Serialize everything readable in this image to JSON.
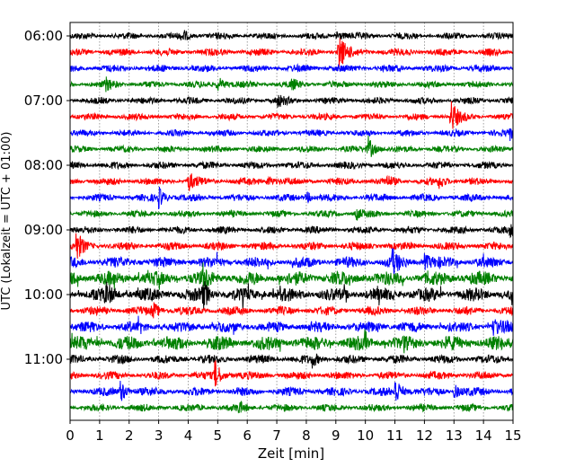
{
  "chart_data": {
    "type": "line",
    "subtype": "helicorder",
    "xlabel": "Zeit  [min]",
    "ylabel": "UTC (Lokalzeit = UTC + 01:00)",
    "xlim": [
      0,
      15
    ],
    "x_ticks": [
      "0",
      "1",
      "2",
      "3",
      "4",
      "5",
      "6",
      "7",
      "8",
      "9",
      "10",
      "11",
      "12",
      "13",
      "14",
      "15"
    ],
    "y_ticks": [
      {
        "label": "06:00",
        "row": 0
      },
      {
        "label": "07:00",
        "row": 4
      },
      {
        "label": "08:00",
        "row": 8
      },
      {
        "label": "09:00",
        "row": 12
      },
      {
        "label": "10:00",
        "row": 16
      },
      {
        "label": "11:00",
        "row": 20
      }
    ],
    "grid": "vertical dotted at each minute",
    "colors": [
      "#000000",
      "#ff0000",
      "#0000ff",
      "#008000"
    ],
    "traces": [
      {
        "start": "06:00",
        "noise": 1.0,
        "events": [
          [
            3.8,
            2
          ],
          [
            9.0,
            2.5
          ]
        ]
      },
      {
        "start": "06:15",
        "noise": 1.1,
        "events": [
          [
            9.1,
            7
          ]
        ]
      },
      {
        "start": "06:30",
        "noise": 1.1,
        "events": []
      },
      {
        "start": "06:45",
        "noise": 1.0,
        "events": [
          [
            1.2,
            2
          ],
          [
            5.0,
            3
          ],
          [
            7.5,
            1.5
          ]
        ]
      },
      {
        "start": "07:00",
        "noise": 1.0,
        "events": [
          [
            7.0,
            2
          ]
        ]
      },
      {
        "start": "07:15",
        "noise": 1.0,
        "events": [
          [
            12.9,
            6
          ]
        ]
      },
      {
        "start": "07:30",
        "noise": 1.0,
        "events": [
          [
            14.9,
            2
          ]
        ]
      },
      {
        "start": "07:45",
        "noise": 1.0,
        "events": [
          [
            10.1,
            4
          ]
        ]
      },
      {
        "start": "08:00",
        "noise": 1.1,
        "events": []
      },
      {
        "start": "08:15",
        "noise": 1.1,
        "events": [
          [
            4.0,
            3.5
          ],
          [
            6.7,
            2
          ],
          [
            10.7,
            1.5
          ],
          [
            12.5,
            2
          ]
        ]
      },
      {
        "start": "08:30",
        "noise": 1.1,
        "events": [
          [
            3.0,
            3.5
          ],
          [
            8.0,
            2
          ]
        ]
      },
      {
        "start": "08:45",
        "noise": 1.0,
        "events": [
          [
            9.7,
            2
          ]
        ]
      },
      {
        "start": "09:00",
        "noise": 1.1,
        "events": [
          [
            14.9,
            2
          ]
        ]
      },
      {
        "start": "09:15",
        "noise": 1.2,
        "events": [
          [
            0.2,
            5
          ]
        ]
      },
      {
        "start": "09:30",
        "noise": 1.6,
        "events": [
          [
            10.9,
            4
          ],
          [
            12.0,
            2.5
          ]
        ]
      },
      {
        "start": "09:45",
        "noise": 2.1,
        "events": [
          [
            4.5,
            3
          ]
        ]
      },
      {
        "start": "10:00",
        "noise": 2.0,
        "events": [
          [
            1.2,
            3
          ],
          [
            4.5,
            4
          ]
        ]
      },
      {
        "start": "10:15",
        "noise": 1.3,
        "events": [
          [
            2.8,
            3
          ]
        ]
      },
      {
        "start": "10:30",
        "noise": 1.6,
        "events": [
          [
            14.3,
            3
          ]
        ]
      },
      {
        "start": "10:45",
        "noise": 2.1,
        "events": []
      },
      {
        "start": "11:00",
        "noise": 1.3,
        "events": [
          [
            8.2,
            2
          ]
        ]
      },
      {
        "start": "11:15",
        "noise": 1.2,
        "events": [
          [
            4.9,
            5
          ]
        ]
      },
      {
        "start": "11:30",
        "noise": 1.3,
        "events": [
          [
            1.7,
            4
          ],
          [
            11.0,
            5
          ],
          [
            13.0,
            2.5
          ]
        ]
      },
      {
        "start": "11:45",
        "noise": 1.1,
        "events": [
          [
            5.7,
            1.5
          ]
        ]
      }
    ]
  }
}
